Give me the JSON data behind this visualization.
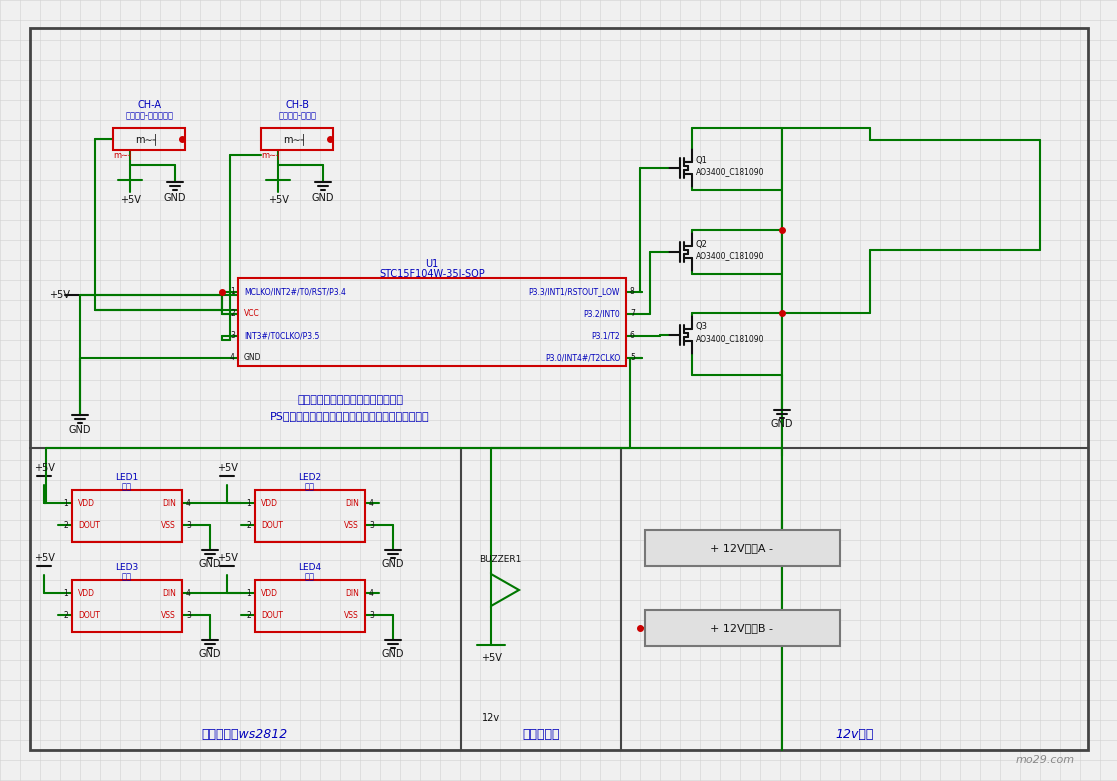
{
  "bg_color": "#f0f0f0",
  "grid_color": "#d0d0d0",
  "wire_color": "#007700",
  "box_edge_color": "#cc0000",
  "text_blue": "#0000bb",
  "text_red": "#cc0000",
  "text_black": "#111111",
  "border_color": "#444444",
  "note_text1": "模块内部电路，包括信号输入及输出",
  "note_text2": "PS：两个通道都要插在接收机上，否则不能正常工作",
  "bottom_text1": "槆灯，四个ws2812",
  "bottom_text2": "有源蜂鸣器",
  "bottom_text3": "12v灯带",
  "watermark": "mo29.com",
  "ch_a_top": "CH-A",
  "ch_a_sub": "三段开关-槆灯加航灯",
  "ch_b_top": "CH-B",
  "ch_b_sub": "两段开关-蜂鸣器",
  "u1_top": "U1",
  "u1_sub": "STC15F104W-35I-SOP",
  "pin_l1": "MCLKO/INT2#/T0/RST/P3.4",
  "pin_l2": "VCC",
  "pin_l3": "INT3#/T0CLKO/P3.5",
  "pin_l4": "GND",
  "pin_r1": "P3.3/INT1/RSTOUT_LOW",
  "pin_r2": "P3.2/INT0",
  "pin_r3": "P3.1/T2",
  "pin_r4": "P3.0/INT4#/T2CLKO",
  "q_model": "AO3400_C181090",
  "led1_name": "LED1",
  "led1_pos": "左前",
  "led2_name": "LED2",
  "led2_pos": "右前",
  "led3_name": "LED3",
  "led3_pos": "左后",
  "led4_name": "LED4",
  "led4_pos": "右后"
}
